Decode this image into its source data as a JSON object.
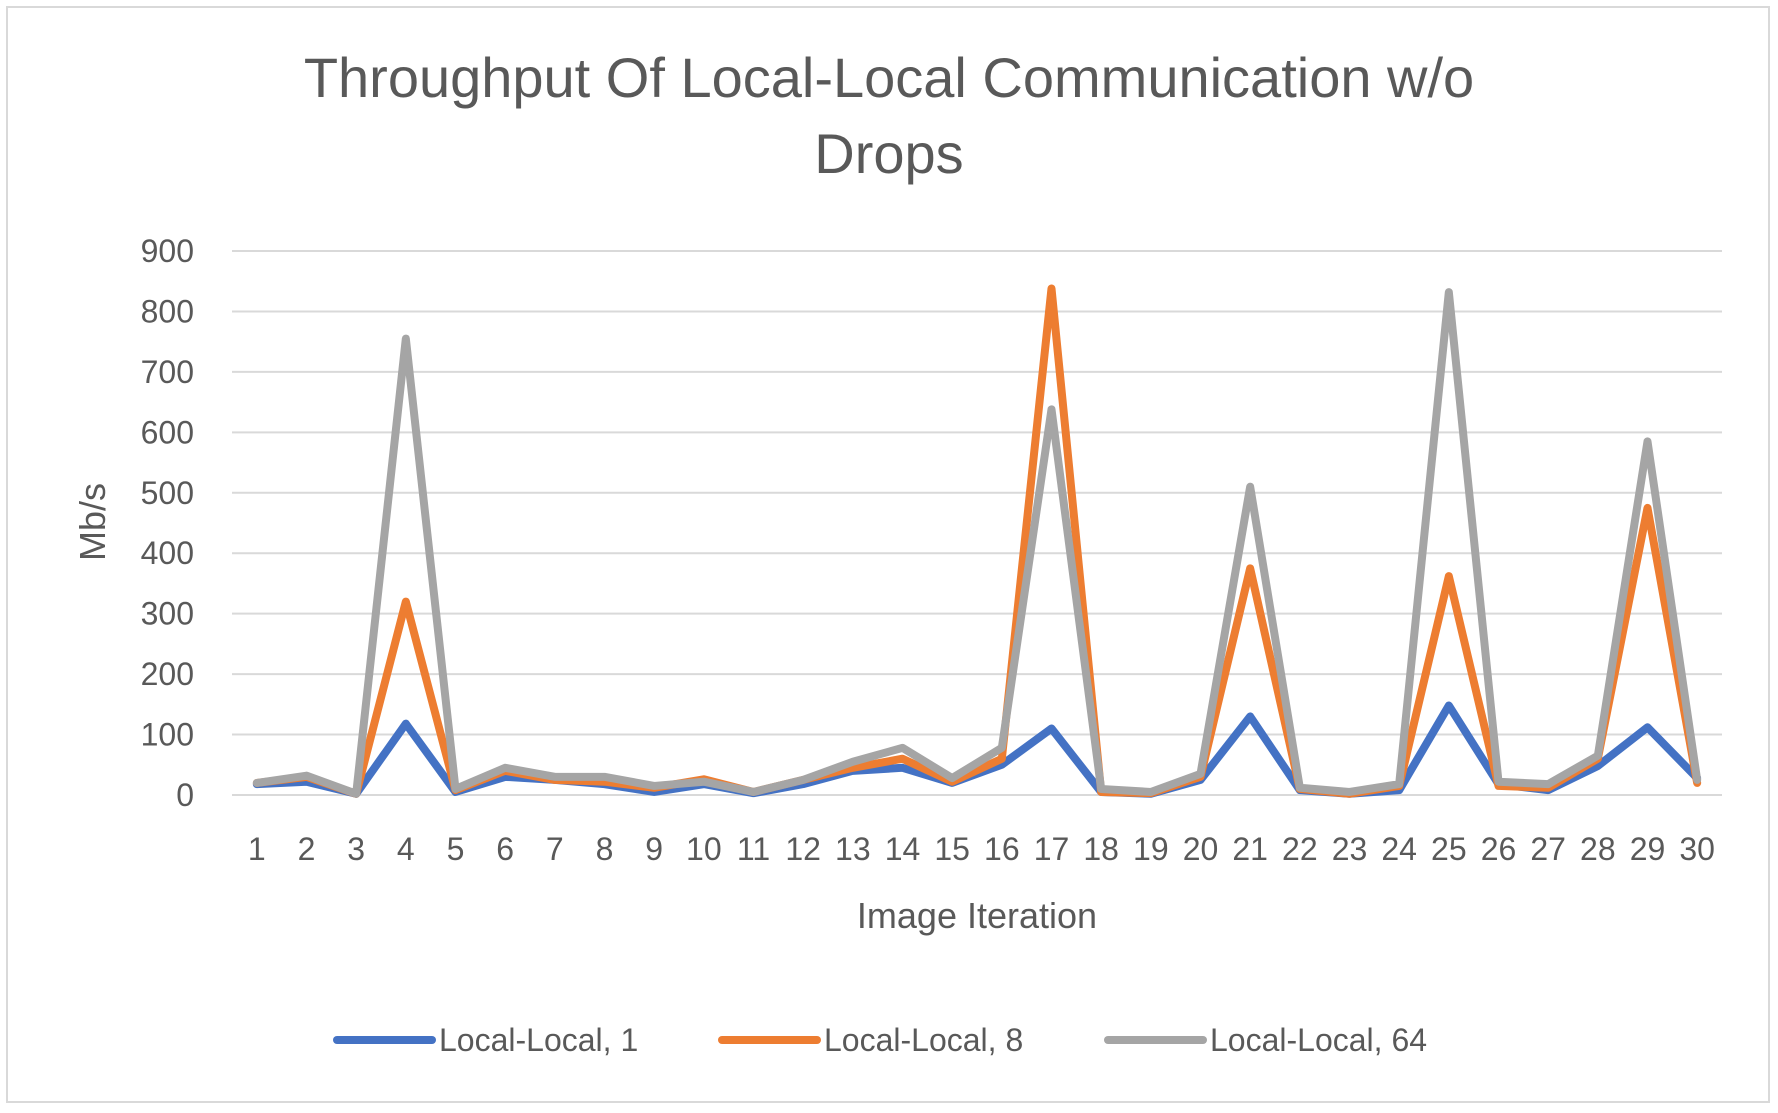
{
  "chart_data": {
    "type": "line",
    "title_lines": [
      "Throughput Of Local-Local Communication w/o",
      "Drops"
    ],
    "xlabel": "Image Iteration",
    "ylabel": "Mb/s",
    "ylim": [
      0,
      900
    ],
    "yticks": [
      "0",
      "100",
      "200",
      "300",
      "400",
      "500",
      "600",
      "700",
      "800",
      "900"
    ],
    "grid": true,
    "legend_position": "bottom",
    "categories": [
      "1",
      "2",
      "3",
      "4",
      "5",
      "6",
      "7",
      "8",
      "9",
      "10",
      "11",
      "12",
      "13",
      "14",
      "15",
      "16",
      "17",
      "18",
      "19",
      "20",
      "21",
      "22",
      "23",
      "24",
      "25",
      "26",
      "27",
      "28",
      "29",
      "30"
    ],
    "series": [
      {
        "name": "Local-Local, 1",
        "color": "#4472C4",
        "values": [
          18,
          22,
          2,
          118,
          5,
          30,
          25,
          18,
          5,
          18,
          3,
          18,
          40,
          45,
          20,
          50,
          110,
          5,
          2,
          25,
          130,
          8,
          2,
          8,
          148,
          18,
          8,
          48,
          112,
          28
        ]
      },
      {
        "name": "Local-Local, 8",
        "color": "#ED7D31",
        "values": [
          20,
          30,
          2,
          320,
          8,
          40,
          25,
          22,
          12,
          26,
          5,
          25,
          45,
          60,
          22,
          60,
          838,
          5,
          3,
          30,
          375,
          10,
          2,
          15,
          362,
          15,
          12,
          60,
          475,
          20
        ]
      },
      {
        "name": "Local-Local, 64",
        "color": "#A5A5A5",
        "values": [
          20,
          32,
          2,
          755,
          10,
          45,
          30,
          30,
          15,
          22,
          5,
          25,
          55,
          78,
          28,
          78,
          638,
          10,
          5,
          35,
          510,
          12,
          5,
          18,
          832,
          22,
          18,
          65,
          585,
          25
        ]
      }
    ]
  }
}
